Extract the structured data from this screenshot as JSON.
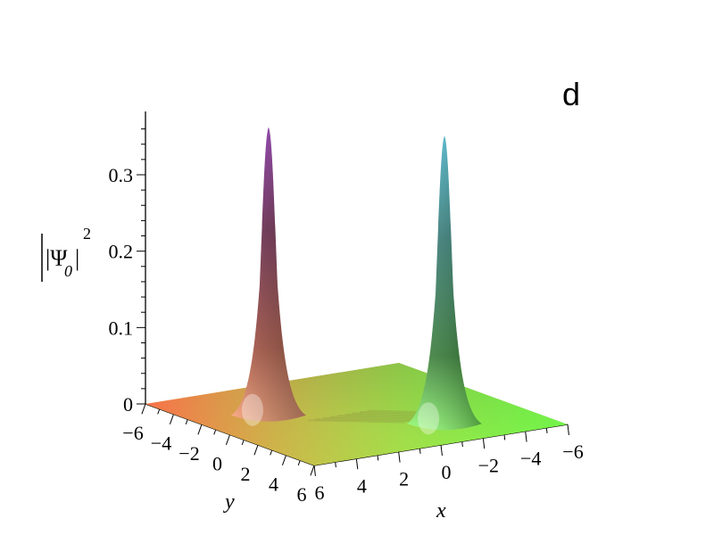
{
  "chart_data": {
    "type": "surface3d",
    "panel_letter": "d",
    "title": "",
    "zlabel": {
      "base": "|Ψ",
      "subscript": "0",
      "close": "|",
      "superscript": "2"
    },
    "xlabel": "x",
    "ylabel": "y",
    "x_ticks": [
      "6",
      "4",
      "2",
      "0",
      "−2",
      "−4",
      "−6"
    ],
    "y_ticks": [
      "−6",
      "−4",
      "−2",
      "0",
      "2",
      "4",
      "6"
    ],
    "z_ticks": [
      "0",
      "0.1",
      "0.2",
      "0.3"
    ],
    "xlim": [
      -6,
      6
    ],
    "ylim": [
      -6,
      6
    ],
    "zlim": [
      0,
      0.37
    ],
    "peaks": [
      {
        "x": 2.5,
        "y": -2.5,
        "height": 0.37
      },
      {
        "x": -2.5,
        "y": 2.5,
        "height": 0.37
      }
    ]
  }
}
